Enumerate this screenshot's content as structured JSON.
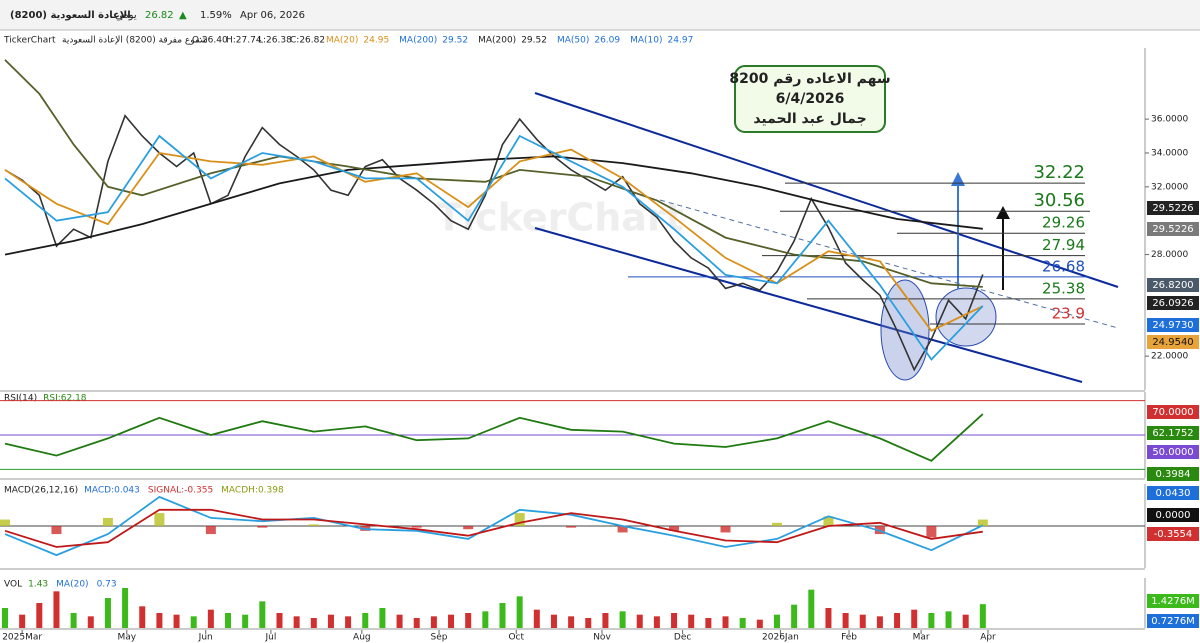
{
  "header": {
    "symbol": "(8200) الإعادة السعودية",
    "period": "يومي",
    "price": 26.82,
    "arrow": "▲",
    "change": "1.59%",
    "date": "Apr 06, 2026"
  },
  "info": {
    "source": "TickerChart",
    "chart_name": "شموع مفرقة (8200) الإعادة السعودية",
    "open": "O:26.40",
    "high": "H:27.74",
    "low": "L:26.38",
    "close": "C:26.82",
    "ma": [
      {
        "label": "MA(20)",
        "value": 24.95,
        "color": "#d9901a"
      },
      {
        "label": "MA(200)",
        "value": 29.52,
        "color": "#1e6fd9"
      },
      {
        "label": "MA(200)",
        "value": 29.52,
        "color": "#222222"
      },
      {
        "label": "MA(50)",
        "value": 26.09,
        "color": "#1e6fd9"
      },
      {
        "label": "MA(10)",
        "value": 24.97,
        "color": "#1e6fd9"
      }
    ]
  },
  "annotation": {
    "lines": [
      "سهم الاعاده رقم 8200",
      "6/4/2026",
      "جمال عبد الحميد"
    ]
  },
  "watermark": "TickerChart",
  "chart_data": [
    {
      "type": "line",
      "xlim": [
        0,
        58
      ],
      "ylim": [
        20,
        40.2
      ],
      "xticks": [
        {
          "value": 1,
          "label": "2025Mar"
        },
        {
          "value": 7.1,
          "label": "May"
        },
        {
          "value": 11.7,
          "label": "Jun"
        },
        {
          "value": 15.5,
          "label": "Jul"
        },
        {
          "value": 20.8,
          "label": "Aug"
        },
        {
          "value": 25.3,
          "label": "Sep"
        },
        {
          "value": 29.8,
          "label": "Oct"
        },
        {
          "value": 34.8,
          "label": "Nov"
        },
        {
          "value": 39.5,
          "label": "Dec"
        },
        {
          "value": 45.2,
          "label": "2026Jan"
        },
        {
          "value": 49.2,
          "label": "Feb"
        },
        {
          "value": 53.4,
          "label": "Mar"
        },
        {
          "value": 57.3,
          "label": "Apr"
        }
      ],
      "yticks": [
        {
          "value": 22,
          "label": "22.0000"
        },
        {
          "value": 28,
          "label": "28.0000"
        },
        {
          "value": 32,
          "label": "32.0000"
        },
        {
          "value": 34,
          "label": "34.0000"
        },
        {
          "value": 36,
          "label": "36.0000"
        }
      ],
      "series": [
        {
          "color": "#333333",
          "x": [
            0,
            1,
            2,
            3,
            4,
            5,
            6,
            7,
            8,
            9,
            10,
            11,
            12,
            13,
            14,
            15,
            16,
            17,
            18,
            19,
            20,
            21,
            22,
            23,
            24,
            25,
            26,
            27,
            28,
            29,
            30,
            31,
            32,
            33,
            34,
            35,
            36,
            37,
            38,
            39,
            40,
            41,
            42,
            43,
            44,
            45,
            46,
            47,
            48,
            49,
            50,
            51,
            52,
            53,
            54,
            55,
            56,
            57
          ],
          "values": [
            33.0,
            32.4,
            31.5,
            28.5,
            29.5,
            29.0,
            33.5,
            36.2,
            35.0,
            34.0,
            33.2,
            34.0,
            31.0,
            31.5,
            33.8,
            35.5,
            34.5,
            33.8,
            33.0,
            31.8,
            31.5,
            33.2,
            33.6,
            32.5,
            31.8,
            31.0,
            30.0,
            29.5,
            31.5,
            34.5,
            36.0,
            34.8,
            33.8,
            33.0,
            32.4,
            31.8,
            32.6,
            31.0,
            30.2,
            28.8,
            27.8,
            27.2,
            26.0,
            26.3,
            25.9,
            27.0,
            28.8,
            31.3,
            29.6,
            27.5,
            26.5,
            25.6,
            23.5,
            21.2,
            23.0,
            25.3,
            24.2,
            26.82
          ]
        },
        {
          "name": "MA(200)",
          "color": "#1a1a1a",
          "x": [
            0,
            4,
            8,
            12,
            16,
            20,
            24,
            28,
            32,
            36,
            40,
            44,
            48,
            52,
            57
          ],
          "values": [
            28.0,
            28.8,
            29.8,
            31.0,
            32.2,
            33.0,
            33.3,
            33.6,
            33.8,
            33.4,
            32.8,
            32.0,
            31.0,
            30.1,
            29.52
          ]
        },
        {
          "name": "MA(50)",
          "color": "#55602a",
          "x": [
            0,
            2,
            4,
            6,
            8,
            12,
            16,
            20,
            24,
            28,
            30,
            34,
            38,
            42,
            46,
            50,
            54,
            57
          ],
          "values": [
            39.5,
            37.5,
            34.5,
            32.0,
            31.5,
            32.8,
            33.8,
            33.2,
            32.5,
            32.3,
            33.0,
            32.6,
            31.2,
            29.0,
            28.0,
            27.6,
            26.3,
            26.09
          ]
        },
        {
          "name": "MA(20)",
          "color": "#d9901a",
          "x": [
            0,
            3,
            6,
            9,
            12,
            15,
            18,
            21,
            24,
            27,
            30,
            33,
            36,
            39,
            42,
            45,
            48,
            51,
            54,
            57
          ],
          "values": [
            33,
            31,
            29.8,
            34,
            33.5,
            33.3,
            33.8,
            32.3,
            32.8,
            30.8,
            33.5,
            34.2,
            32.5,
            30.2,
            27.8,
            26.3,
            28.2,
            27.6,
            23.5,
            24.95
          ]
        },
        {
          "name": "MA(10)",
          "color": "#2a9fe0",
          "x": [
            0,
            3,
            6,
            9,
            12,
            15,
            18,
            21,
            24,
            27,
            30,
            33,
            36,
            39,
            42,
            45,
            48,
            51,
            54,
            57
          ],
          "values": [
            32.5,
            30,
            30.5,
            35,
            32.5,
            34,
            33.5,
            32.5,
            32.5,
            30,
            35,
            33.5,
            32,
            29.5,
            26.8,
            26.3,
            30,
            26.2,
            21.8,
            24.97
          ]
        }
      ],
      "levels": [
        {
          "value": 32.22,
          "color": "#1a7a1a"
        },
        {
          "value": 30.56,
          "color": "#1a7a1a"
        },
        {
          "value": 29.26,
          "color": "#1a7a1a"
        },
        {
          "value": 27.94,
          "color": "#1a7a1a"
        },
        {
          "value": 26.68,
          "color": "#1e4fc0"
        },
        {
          "value": 25.38,
          "color": "#1a7a1a"
        },
        {
          "value": 23.9,
          "color": "#d03030"
        }
      ],
      "tags": [
        {
          "label": "29.5226",
          "color": "#222222"
        },
        {
          "label": "29.5226",
          "color": "#7a7a7a"
        },
        {
          "label": "26.8200",
          "color": "#4a5a6a"
        },
        {
          "label": "26.0926",
          "color": "#222222"
        },
        {
          "label": "24.9730",
          "color": "#1e6fd9"
        },
        {
          "label": "24.9540",
          "color": "#e8a33a"
        }
      ]
    },
    {
      "type": "line",
      "title": "RSI(14)",
      "subtitle": "RSI:62.18",
      "xlim": [
        0,
        58
      ],
      "ylim": [
        25,
        75
      ],
      "levels": [
        {
          "value": 70,
          "color": "#d03030"
        },
        {
          "value": 50,
          "color": "#7a4ad0"
        },
        {
          "value": 30,
          "color": "#2a9a2a"
        }
      ],
      "series": [
        {
          "color": "#1f7a10",
          "x": [
            0,
            3,
            6,
            9,
            12,
            15,
            18,
            21,
            24,
            27,
            30,
            33,
            36,
            39,
            42,
            45,
            48,
            51,
            54,
            57
          ],
          "values": [
            45,
            38,
            48,
            60,
            50,
            58,
            52,
            55,
            47,
            48,
            60,
            53,
            52,
            45,
            43,
            48,
            58,
            48,
            35,
            62.18
          ]
        }
      ],
      "tags": [
        {
          "label": "70.0000",
          "color": "#d03030"
        },
        {
          "label": "62.1752",
          "color": "#2a8a10"
        },
        {
          "label": "50.0000",
          "color": "#7a4ad0"
        },
        {
          "label": "0.3984",
          "color": "#2a8a10"
        }
      ]
    },
    {
      "type": "line",
      "title": "MACD(26,12,16)",
      "xlim": [
        0,
        58
      ],
      "ylim": [
        -2.6,
        2.6
      ],
      "levels": [
        {
          "value": 0,
          "color": "#444444"
        }
      ],
      "legend": [
        {
          "label": "MACD:0.043",
          "color": "#1e6fd9"
        },
        {
          "label": "SIGNAL:-0.355",
          "color": "#d03030"
        },
        {
          "label": "MACDH:0.398",
          "color": "#8a9a10"
        }
      ],
      "series": [
        {
          "color": "#2a9fe0",
          "x": [
            0,
            3,
            6,
            9,
            12,
            15,
            18,
            21,
            24,
            27,
            30,
            33,
            36,
            39,
            42,
            45,
            48,
            51,
            54,
            57
          ],
          "values": [
            -0.5,
            -1.8,
            -0.5,
            1.8,
            0.5,
            0.3,
            0.5,
            -0.2,
            -0.3,
            -0.8,
            1.0,
            0.7,
            0.0,
            -0.6,
            -1.3,
            -0.8,
            0.6,
            -0.3,
            -1.5,
            0.043
          ]
        },
        {
          "color": "#c01818",
          "x": [
            0,
            3,
            6,
            9,
            12,
            15,
            18,
            21,
            24,
            27,
            30,
            33,
            36,
            39,
            42,
            45,
            48,
            51,
            54,
            57
          ],
          "values": [
            -0.3,
            -1.3,
            -1.0,
            1.0,
            1.0,
            0.4,
            0.4,
            0.1,
            -0.2,
            -0.6,
            0.2,
            0.8,
            0.4,
            -0.3,
            -0.9,
            -1.0,
            0.0,
            0.2,
            -0.8,
            -0.355
          ]
        }
      ],
      "histogram": {
        "x": [
          0,
          3,
          6,
          9,
          12,
          15,
          18,
          21,
          24,
          27,
          30,
          33,
          36,
          39,
          42,
          45,
          48,
          51,
          54,
          57
        ],
        "values": [
          0.4,
          -0.5,
          0.5,
          0.8,
          -0.5,
          -0.1,
          0.1,
          -0.3,
          -0.1,
          -0.2,
          0.8,
          -0.1,
          -0.4,
          -0.3,
          -0.4,
          0.2,
          0.6,
          -0.5,
          -0.7,
          0.398
        ],
        "colors": [
          "#b8c020",
          "#d03030"
        ]
      },
      "tags": [
        {
          "label": "0.0430",
          "color": "#1e6fd9"
        },
        {
          "label": "0.0000",
          "color": "#111111"
        },
        {
          "label": "-0.3554",
          "color": "#d03030"
        }
      ]
    },
    {
      "type": "bar",
      "title": "VOL",
      "xlim": [
        0,
        58
      ],
      "ylim": [
        0,
        3
      ],
      "legend": [
        {
          "label": "1.43",
          "color": "#2a8a10"
        },
        {
          "label": "MA(20)",
          "color": "#1e6fd9"
        },
        {
          "label": "0.73",
          "color": "#1e6fd9"
        }
      ],
      "colors": [
        "#3cba1c",
        "#d03030"
      ],
      "values": [
        1.2,
        0.8,
        1.5,
        2.2,
        0.9,
        0.7,
        1.8,
        2.4,
        1.3,
        0.9,
        0.8,
        0.7,
        1.1,
        0.9,
        0.8,
        1.6,
        0.9,
        0.7,
        0.6,
        0.8,
        0.7,
        0.9,
        1.2,
        0.8,
        0.6,
        0.7,
        0.8,
        0.9,
        1.0,
        1.5,
        1.9,
        1.1,
        0.8,
        0.7,
        0.6,
        0.9,
        1.0,
        0.8,
        0.7,
        0.9,
        0.8,
        0.6,
        0.7,
        0.6,
        0.5,
        0.8,
        1.4,
        2.3,
        1.2,
        0.9,
        0.8,
        0.7,
        0.9,
        1.1,
        0.9,
        1.0,
        0.8,
        1.43
      ],
      "tags": [
        {
          "label": "1.4276M",
          "color": "#3cba1c"
        },
        {
          "label": "0.7276M",
          "color": "#1e6fd9"
        }
      ]
    }
  ]
}
